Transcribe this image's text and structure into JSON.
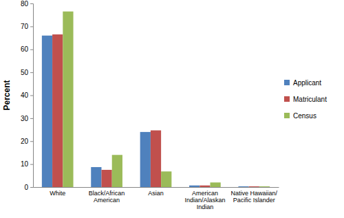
{
  "chart_data": {
    "type": "bar",
    "y_label": "Percent",
    "categories": [
      "White",
      "Black/African American",
      "Asian",
      "American Indian/Alaskan Indian",
      "Native Hawaiian/ Pacific Islander"
    ],
    "series": [
      {
        "name": "Applicant",
        "color": "#4f81bd",
        "values": [
          66,
          8.7,
          24,
          0.7,
          0.3
        ]
      },
      {
        "name": "Matriculant",
        "color": "#c0504d",
        "values": [
          66.5,
          7.5,
          24.7,
          0.7,
          0.3
        ]
      },
      {
        "name": "Census",
        "color": "#9bbb59",
        "values": [
          76.5,
          14,
          6.8,
          2,
          0.3
        ]
      }
    ],
    "ylim": [
      0,
      80
    ],
    "yticks": [
      0,
      10,
      20,
      30,
      40,
      50,
      60,
      70,
      80
    ],
    "grid": false,
    "legend": "right"
  }
}
